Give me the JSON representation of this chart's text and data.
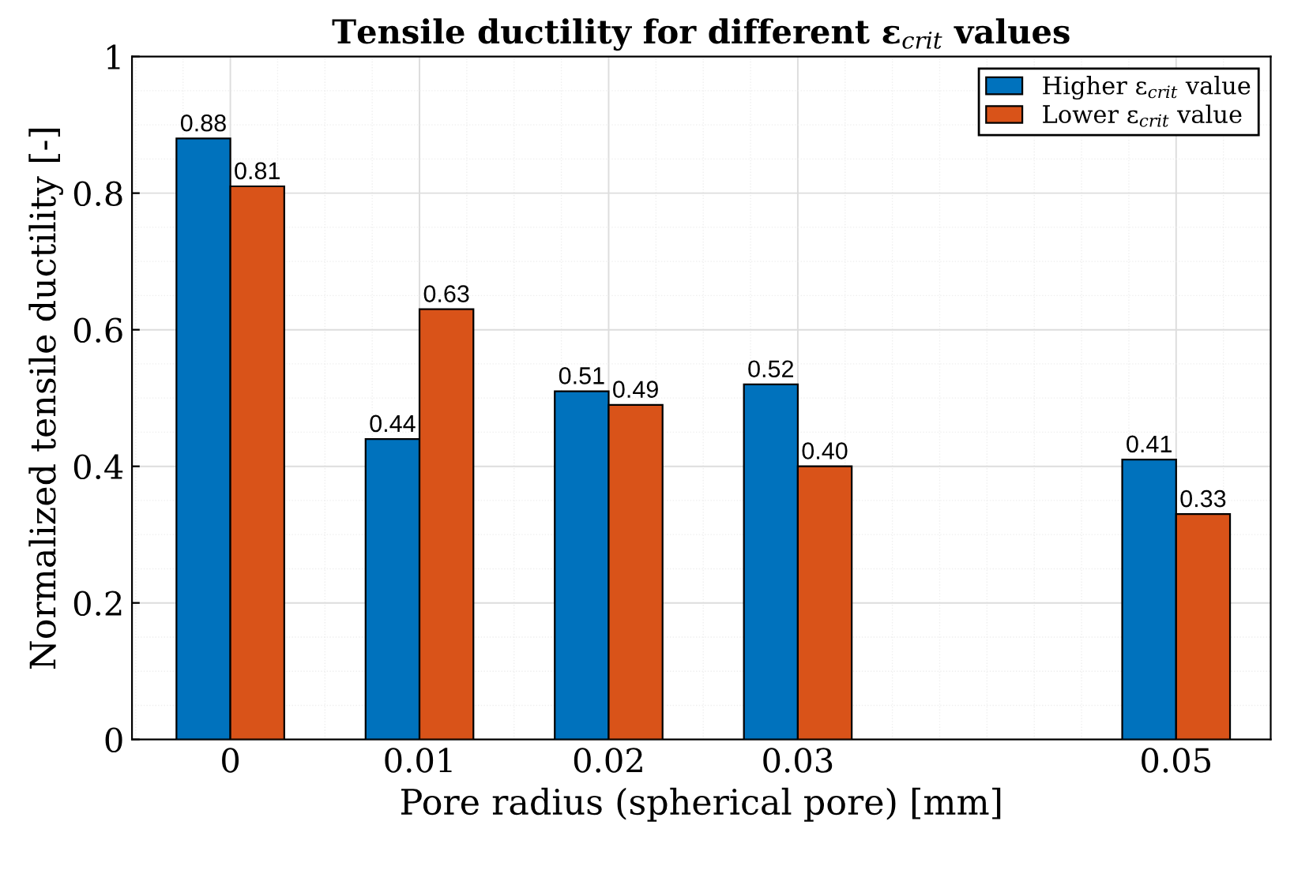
{
  "chart_data": {
    "type": "bar",
    "title": "Tensile ductility for different ε$_{crit}$ values",
    "xlabel": "Pore radius (spherical pore) [mm]",
    "ylabel": "Normalized tensile ductility [-]",
    "x": [
      0,
      0.01,
      0.02,
      0.03,
      0.05
    ],
    "series": [
      {
        "name": "Higher ε$_{crit}$ value",
        "color": "#0072bd",
        "values": [
          0.88,
          0.44,
          0.51,
          0.52,
          0.41
        ],
        "value_labels": [
          "0.88",
          "0.44",
          "0.51",
          "0.52",
          "0.41"
        ]
      },
      {
        "name": "Lower ε$_{crit}$ value",
        "color": "#d95319",
        "values": [
          0.81,
          0.63,
          0.49,
          0.4,
          0.33
        ],
        "value_labels": [
          "0.81",
          "0.63",
          "0.49",
          "0.40",
          "0.33"
        ]
      }
    ],
    "xlim": [
      -0.0052,
      0.055
    ],
    "xticks": [
      0,
      0.01,
      0.02,
      0.03,
      0.05
    ],
    "ylim": [
      0,
      1
    ],
    "yticks": [
      0,
      0.2,
      0.4,
      0.6,
      0.8,
      1
    ],
    "grid": true,
    "legend": "top right"
  }
}
